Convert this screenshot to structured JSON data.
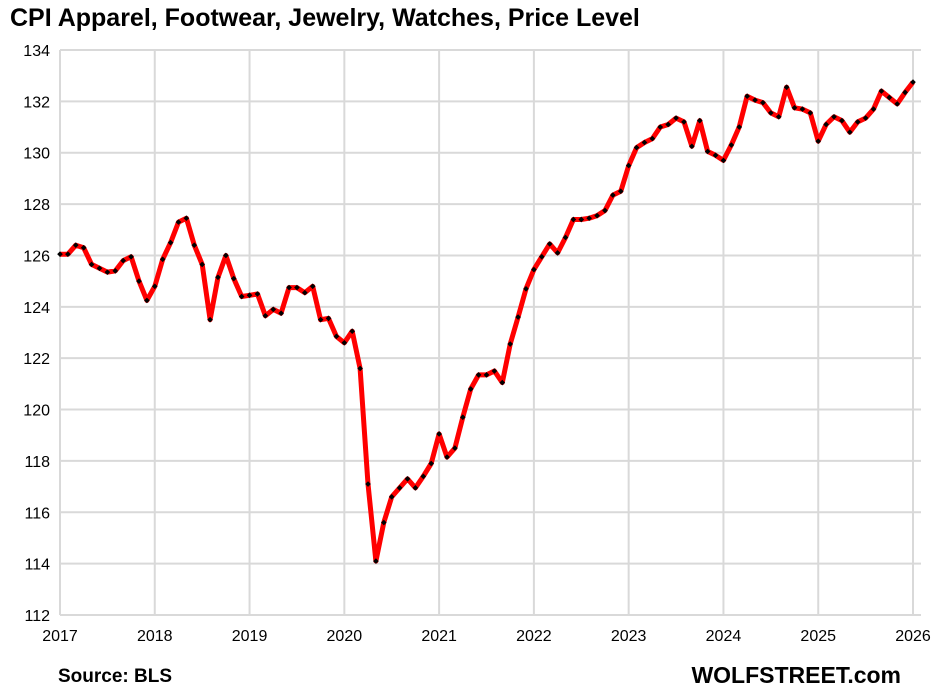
{
  "chart_data": {
    "type": "line",
    "title": "CPI Apparel, Footwear, Jewelry, Watches, Price Level",
    "xlabel": "",
    "ylabel": "",
    "source": "Source: BLS",
    "brand": "WOLFSTREET.com",
    "ylim": [
      112,
      134
    ],
    "yticks": [
      "112",
      "114",
      "116",
      "118",
      "120",
      "122",
      "124",
      "126",
      "128",
      "130",
      "132",
      "134"
    ],
    "xticks": [
      "2017",
      "2018",
      "2019",
      "2020",
      "2021",
      "2022",
      "2023",
      "2024",
      "2025",
      "2026"
    ],
    "x_start": "2017-01",
    "frequency": "monthly",
    "grid": true,
    "line_color": "#ff0000",
    "marker_color": "#000000",
    "series": [
      {
        "name": "CPI Apparel, Footwear, Jewelry, Watches",
        "values": [
          126.05,
          126.05,
          126.4,
          126.3,
          125.65,
          125.5,
          125.35,
          125.4,
          125.8,
          125.95,
          125.0,
          124.25,
          124.8,
          125.85,
          126.5,
          127.3,
          127.45,
          126.4,
          125.65,
          123.5,
          125.15,
          126.0,
          125.1,
          124.4,
          124.45,
          124.5,
          123.65,
          123.9,
          123.75,
          124.75,
          124.75,
          124.55,
          124.8,
          123.5,
          123.55,
          122.85,
          122.6,
          123.05,
          121.6,
          117.1,
          114.1,
          115.6,
          116.6,
          116.95,
          117.3,
          116.95,
          117.4,
          117.9,
          119.05,
          118.15,
          118.5,
          119.7,
          120.8,
          121.35,
          121.35,
          121.5,
          121.05,
          122.55,
          123.6,
          124.7,
          125.45,
          125.95,
          126.45,
          126.1,
          126.7,
          127.4,
          127.4,
          127.45,
          127.55,
          127.75,
          128.35,
          128.5,
          129.5,
          130.2,
          130.4,
          130.55,
          131.0,
          131.1,
          131.35,
          131.2,
          130.25,
          131.25,
          130.05,
          129.9,
          129.7,
          130.3,
          131.0,
          132.2,
          132.05,
          131.95,
          131.55,
          131.4,
          132.55,
          131.75,
          131.7,
          131.55,
          130.45,
          131.1,
          131.4,
          131.25,
          130.8,
          131.2,
          131.35,
          131.7,
          132.4,
          132.15,
          131.9,
          132.35,
          132.75
        ]
      }
    ]
  }
}
